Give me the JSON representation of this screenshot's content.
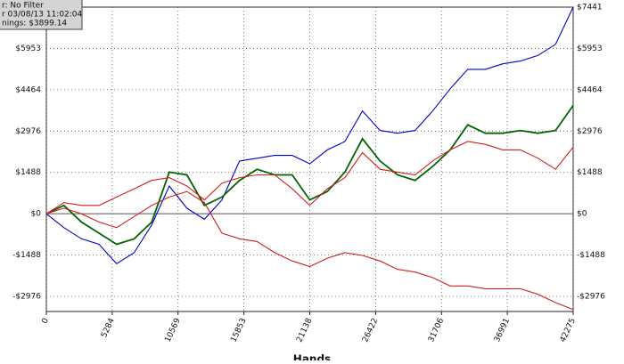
{
  "chart_data": {
    "type": "line",
    "annotations": [
      "r: No Filter",
      "r 03/08/13 11:02:04",
      "nings: $3899.14"
    ],
    "x_label": "Hands",
    "x": [
      0,
      1409,
      2818,
      4227,
      5636,
      7045,
      8454,
      9863,
      11272,
      12681,
      14090,
      15499,
      16908,
      18317,
      19726,
      21135,
      22544,
      23953,
      25362,
      26771,
      28180,
      29589,
      30998,
      32407,
      33816,
      35225,
      36634,
      38043,
      39452,
      40861,
      42275
    ],
    "series": [
      {
        "color": "#0000c8",
        "values": [
          0,
          -500,
          -900,
          -1100,
          -1800,
          -1400,
          -400,
          1000,
          200,
          -200,
          500,
          1900,
          2000,
          2100,
          2100,
          1800,
          2300,
          2600,
          3700,
          3000,
          2900,
          3000,
          3700,
          4500,
          5200,
          5200,
          5400,
          5500,
          5700,
          6100,
          7441
        ]
      },
      {
        "color": "#006400",
        "values": [
          0,
          300,
          -300,
          -700,
          -1100,
          -900,
          -300,
          1500,
          1400,
          300,
          600,
          1200,
          1600,
          1400,
          1400,
          500,
          800,
          1500,
          2700,
          1900,
          1400,
          1200,
          1700,
          2300,
          3200,
          2900,
          2900,
          3000,
          2900,
          3000,
          3900
        ]
      },
      {
        "color": "#d21e1e",
        "values": [
          0,
          400,
          300,
          300,
          600,
          900,
          1200,
          1300,
          1000,
          500,
          1100,
          1300,
          1400,
          1400,
          900,
          300,
          900,
          1300,
          2200,
          1600,
          1500,
          1400,
          1900,
          2300,
          2600,
          2500,
          2300,
          2300,
          2000,
          1600,
          2400
        ]
      },
      {
        "color": "#d21e1e",
        "values": [
          0,
          200,
          0,
          -300,
          -500,
          -100,
          300,
          600,
          800,
          400,
          -700,
          -900,
          -1000,
          -1400,
          -1700,
          -1900,
          -1600,
          -1400,
          -1500,
          -1700,
          -2000,
          -2100,
          -2300,
          -2600,
          -2600,
          -2700,
          -2700,
          -2700,
          -2900,
          -3200,
          -3450
        ]
      }
    ],
    "xlim": [
      0,
      42275
    ],
    "xticks": [
      0,
      5284,
      10569,
      15853,
      21138,
      26422,
      31706,
      36991,
      42275
    ],
    "ylim": [
      -3520,
      7441
    ],
    "yticks": [
      {
        "value": -2976,
        "label": "-$2976"
      },
      {
        "value": -1488,
        "label": "-$1488"
      },
      {
        "value": 0,
        "label": "$0"
      },
      {
        "value": 1488,
        "label": "$1488"
      },
      {
        "value": 2976,
        "label": "$2976"
      },
      {
        "value": 4464,
        "label": "$4464"
      },
      {
        "value": 5953,
        "label": "$5953"
      },
      {
        "value": 7441,
        "label": "$7441"
      }
    ],
    "grid": true
  }
}
